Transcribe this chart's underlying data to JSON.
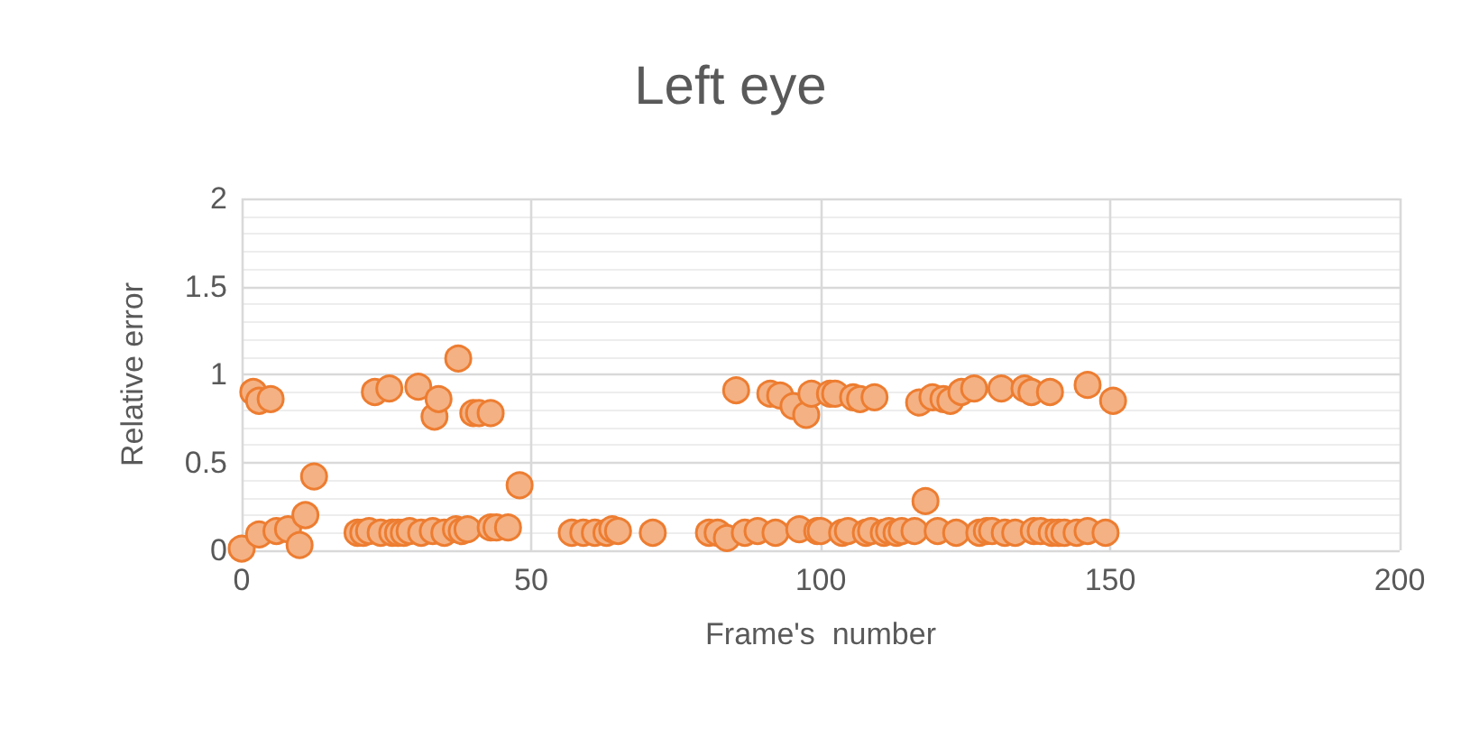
{
  "chart_data": {
    "type": "scatter",
    "title": "Left eye",
    "xlabel": "Frame's  number",
    "ylabel": "Relative error",
    "x": [
      0,
      2,
      3,
      3,
      5,
      6,
      8,
      10,
      11,
      12.5,
      20,
      21,
      22,
      24,
      26,
      27,
      28,
      29,
      31,
      33,
      35,
      37,
      38,
      39,
      23,
      25.5,
      30.5,
      33.3,
      34,
      37.4,
      40,
      41,
      43,
      43,
      44,
      46,
      48,
      57,
      59,
      61,
      63,
      64,
      65,
      71,
      80.7,
      82.2,
      83.8,
      86.9,
      89.1,
      92.2,
      96.3,
      99.4,
      100,
      103.7,
      104.7,
      107.8,
      108.7,
      110.9,
      111.8,
      113.1,
      114,
      116.2,
      118.1,
      120.2,
      123.4,
      127.4,
      128.7,
      129.6,
      131.8,
      133.6,
      136.8,
      138,
      139.9,
      141.1,
      142.1,
      144.2,
      146.1,
      149.2,
      85.4,
      91.3,
      93,
      95.3,
      97.5,
      98.4,
      101.6,
      102.5,
      105.6,
      106.8,
      109.3,
      117,
      119.3,
      121.2,
      122.4,
      124.3,
      126.5,
      131.2,
      135.2,
      136.4,
      139.6,
      146.1,
      150.5
    ],
    "values": [
      0.01,
      0.9,
      0.09,
      0.85,
      0.86,
      0.11,
      0.12,
      0.03,
      0.2,
      0.42,
      0.1,
      0.1,
      0.11,
      0.1,
      0.1,
      0.1,
      0.1,
      0.11,
      0.1,
      0.11,
      0.1,
      0.12,
      0.11,
      0.12,
      0.9,
      0.92,
      0.93,
      0.76,
      0.86,
      1.09,
      0.78,
      0.78,
      0.78,
      0.13,
      0.13,
      0.13,
      0.37,
      0.1,
      0.1,
      0.1,
      0.1,
      0.12,
      0.11,
      0.1,
      0.1,
      0.1,
      0.07,
      0.1,
      0.11,
      0.1,
      0.12,
      0.11,
      0.11,
      0.1,
      0.11,
      0.1,
      0.11,
      0.1,
      0.11,
      0.1,
      0.11,
      0.11,
      0.28,
      0.11,
      0.1,
      0.1,
      0.11,
      0.11,
      0.1,
      0.1,
      0.11,
      0.11,
      0.1,
      0.1,
      0.1,
      0.1,
      0.11,
      0.1,
      0.91,
      0.89,
      0.88,
      0.82,
      0.77,
      0.89,
      0.89,
      0.89,
      0.87,
      0.86,
      0.87,
      0.84,
      0.87,
      0.86,
      0.85,
      0.9,
      0.92,
      0.92,
      0.92,
      0.9,
      0.9,
      0.94,
      0.85
    ],
    "color": "#f4b183",
    "marker": "circle",
    "xlim": [
      0,
      200
    ],
    "xticks": [
      0,
      50,
      100,
      150,
      200
    ],
    "ylim": [
      0,
      2
    ],
    "yticks": [
      0,
      0.5,
      1,
      1.5,
      2
    ],
    "grid": true
  }
}
